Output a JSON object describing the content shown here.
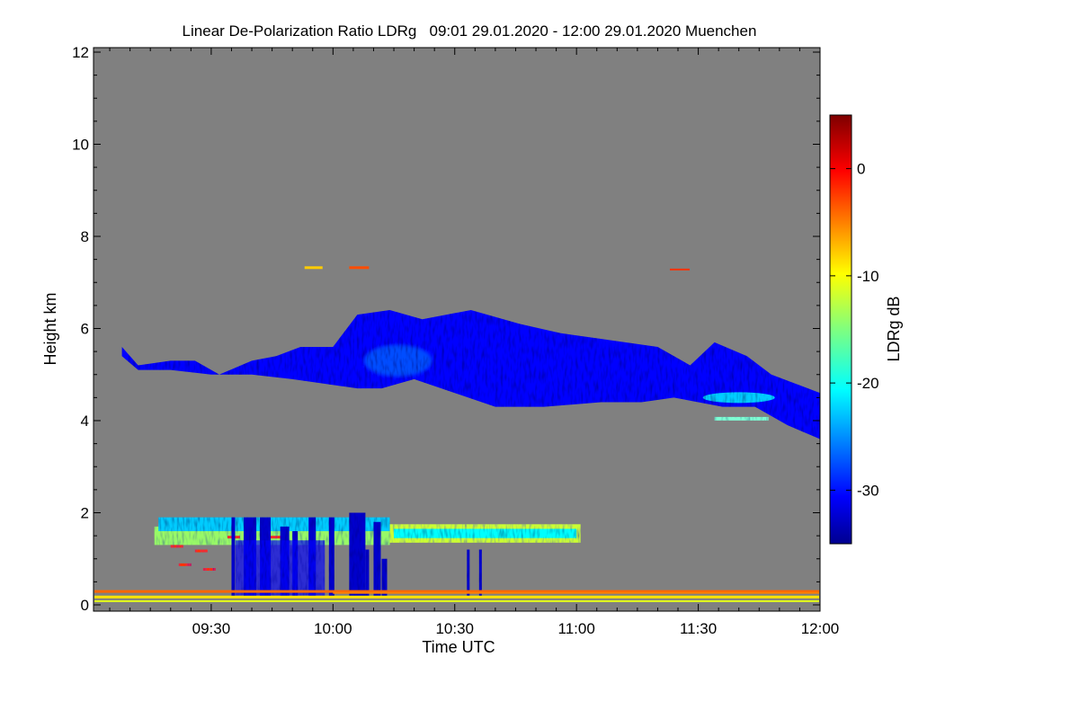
{
  "chart_data": {
    "type": "heatmap",
    "title": "Linear De-Polarization Ratio LDRg   09:01 29.01.2020 - 12:00 29.01.2020 Muenchen",
    "xlabel": "Time UTC",
    "ylabel": "Height km",
    "x_range_minutes_utc": [
      541,
      720
    ],
    "x_ticks": [
      {
        "minutes": 570,
        "label": "09:30"
      },
      {
        "minutes": 600,
        "label": "10:00"
      },
      {
        "minutes": 630,
        "label": "10:30"
      },
      {
        "minutes": 660,
        "label": "11:00"
      },
      {
        "minutes": 690,
        "label": "11:30"
      },
      {
        "minutes": 720,
        "label": "12:00"
      }
    ],
    "ylim": [
      0,
      12
    ],
    "y_ticks": [
      0,
      2,
      4,
      6,
      8,
      10,
      12
    ],
    "colorbar": {
      "label": "LDRg dB",
      "range": [
        -35,
        5
      ],
      "ticks": [
        0,
        -10,
        -20,
        -30
      ],
      "colormap": "jet",
      "missing_color": "#808080"
    },
    "features": [
      {
        "name": "mid-level ice cloud layer",
        "time_start": 541,
        "time_end": 720,
        "height_base_km": 4.3,
        "height_top_km": 6.4,
        "ldr_db": -30
      },
      {
        "name": "low cloud layer",
        "time_start": 555,
        "time_end": 660,
        "height_base_km": 1.3,
        "height_top_km": 1.9,
        "ldr_db": -22
      },
      {
        "name": "precipitation fall streaks",
        "time_start": 575,
        "time_end": 614,
        "height_base_km": 0.1,
        "height_top_km": 2.0,
        "ldr_db": -32
      },
      {
        "name": "near-surface aerosol layer",
        "time_start": 541,
        "time_end": 720,
        "height_base_km": 0.05,
        "height_top_km": 0.35,
        "ldr_db": -5
      },
      {
        "name": "isolated layer near 7.3 km",
        "time_start": 594,
        "time_end": 608,
        "height_base_km": 7.25,
        "height_top_km": 7.35,
        "ldr_db": -6
      }
    ]
  }
}
